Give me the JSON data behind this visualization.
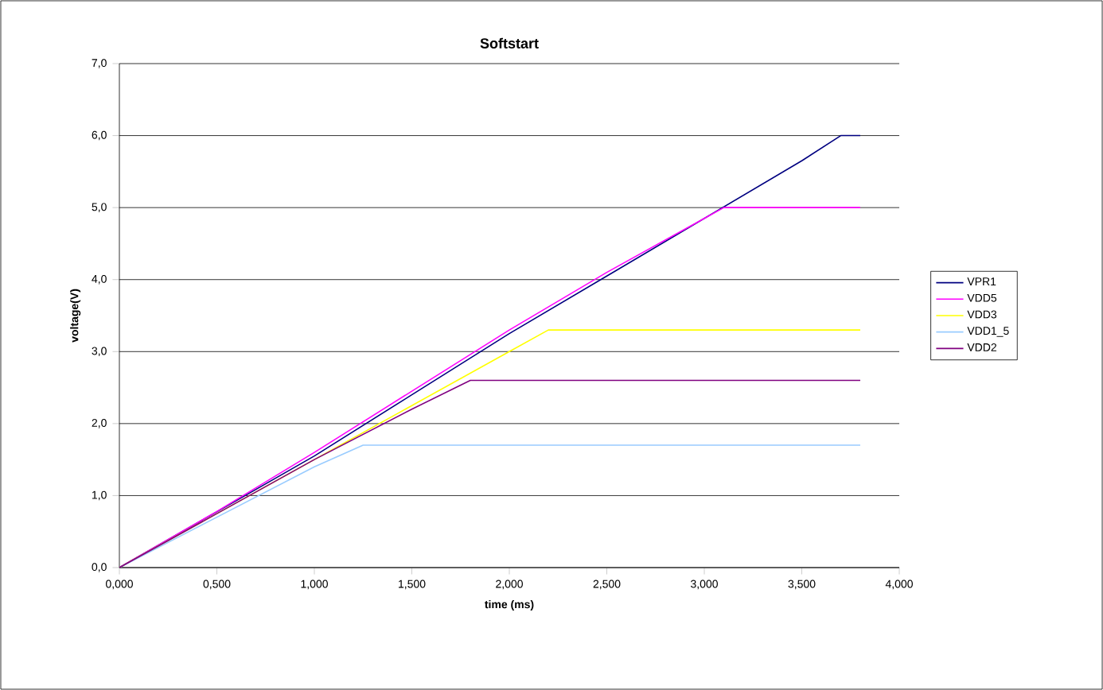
{
  "chart_data": {
    "type": "line",
    "title": "Softstart",
    "xlabel": "time (ms)",
    "ylabel": "voltage(V)",
    "xlim": [
      0,
      4
    ],
    "ylim": [
      0,
      7
    ],
    "xticks": [
      {
        "value": 0,
        "label": "0,000"
      },
      {
        "value": 0.5,
        "label": "0,500"
      },
      {
        "value": 1,
        "label": "1,000"
      },
      {
        "value": 1.5,
        "label": "1,500"
      },
      {
        "value": 2,
        "label": "2,000"
      },
      {
        "value": 2.5,
        "label": "2,500"
      },
      {
        "value": 3,
        "label": "3,000"
      },
      {
        "value": 3.5,
        "label": "3,500"
      },
      {
        "value": 4,
        "label": "4,000"
      }
    ],
    "yticks": [
      {
        "value": 0,
        "label": "0,0"
      },
      {
        "value": 1,
        "label": "1,0"
      },
      {
        "value": 2,
        "label": "2,0"
      },
      {
        "value": 3,
        "label": "3,0"
      },
      {
        "value": 4,
        "label": "4,0"
      },
      {
        "value": 5,
        "label": "5,0"
      },
      {
        "value": 6,
        "label": "6,0"
      },
      {
        "value": 7,
        "label": "7,0"
      }
    ],
    "grid": "y",
    "legend": "right",
    "marker": "none",
    "line_style": "solid",
    "series": [
      {
        "name": "VPR1",
        "color": "#000080",
        "x": [
          0,
          1,
          1.5,
          2,
          2.5,
          3.5,
          3.7,
          3.8
        ],
        "values": [
          0,
          1.55,
          2.4,
          3.25,
          4.05,
          5.65,
          6.0,
          6.0
        ]
      },
      {
        "name": "VDD5",
        "color": "#ff00ff",
        "x": [
          0,
          0.5,
          1,
          1.5,
          2,
          2.5,
          3,
          3.1,
          3.8
        ],
        "values": [
          0,
          0.78,
          1.6,
          2.45,
          3.3,
          4.1,
          4.85,
          5.0,
          5.0
        ]
      },
      {
        "name": "VDD3",
        "color": "#ffff00",
        "x": [
          0,
          1,
          1.5,
          2,
          2.2,
          3.8
        ],
        "values": [
          0,
          1.5,
          2.25,
          3.0,
          3.3,
          3.3
        ]
      },
      {
        "name": "VDD1_5",
        "color": "#99ccff",
        "x": [
          0,
          0.5,
          1,
          1.25,
          3.8
        ],
        "values": [
          0,
          0.7,
          1.4,
          1.7,
          1.7
        ]
      },
      {
        "name": "VDD2",
        "color": "#800080",
        "x": [
          0,
          0.5,
          1,
          1.5,
          1.8,
          3.8
        ],
        "values": [
          0,
          0.75,
          1.5,
          2.2,
          2.6,
          2.6
        ]
      }
    ]
  }
}
